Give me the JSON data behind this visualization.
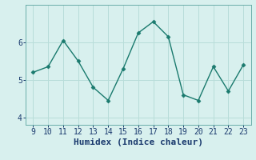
{
  "x": [
    9,
    10,
    11,
    12,
    13,
    14,
    15,
    16,
    17,
    18,
    19,
    20,
    21,
    22,
    23
  ],
  "y": [
    5.2,
    5.35,
    6.05,
    5.5,
    4.8,
    4.45,
    5.3,
    6.25,
    6.55,
    6.15,
    4.6,
    4.45,
    5.35,
    4.7,
    5.4
  ],
  "line_color": "#1a7a6e",
  "marker": "D",
  "marker_size": 2.5,
  "line_width": 1.0,
  "background_color": "#d8f0ee",
  "grid_color": "#b8ddd9",
  "xlabel": "Humidex (Indice chaleur)",
  "xlabel_fontsize": 8,
  "xlabel_fontweight": "bold",
  "ylim": [
    3.8,
    7.0
  ],
  "xlim": [
    8.5,
    23.5
  ],
  "yticks": [
    4,
    5,
    6
  ],
  "xticks": [
    9,
    10,
    11,
    12,
    13,
    14,
    15,
    16,
    17,
    18,
    19,
    20,
    21,
    22,
    23
  ],
  "tick_fontsize": 7,
  "tick_color": "#1a3a6e",
  "spine_color": "#6aada8"
}
